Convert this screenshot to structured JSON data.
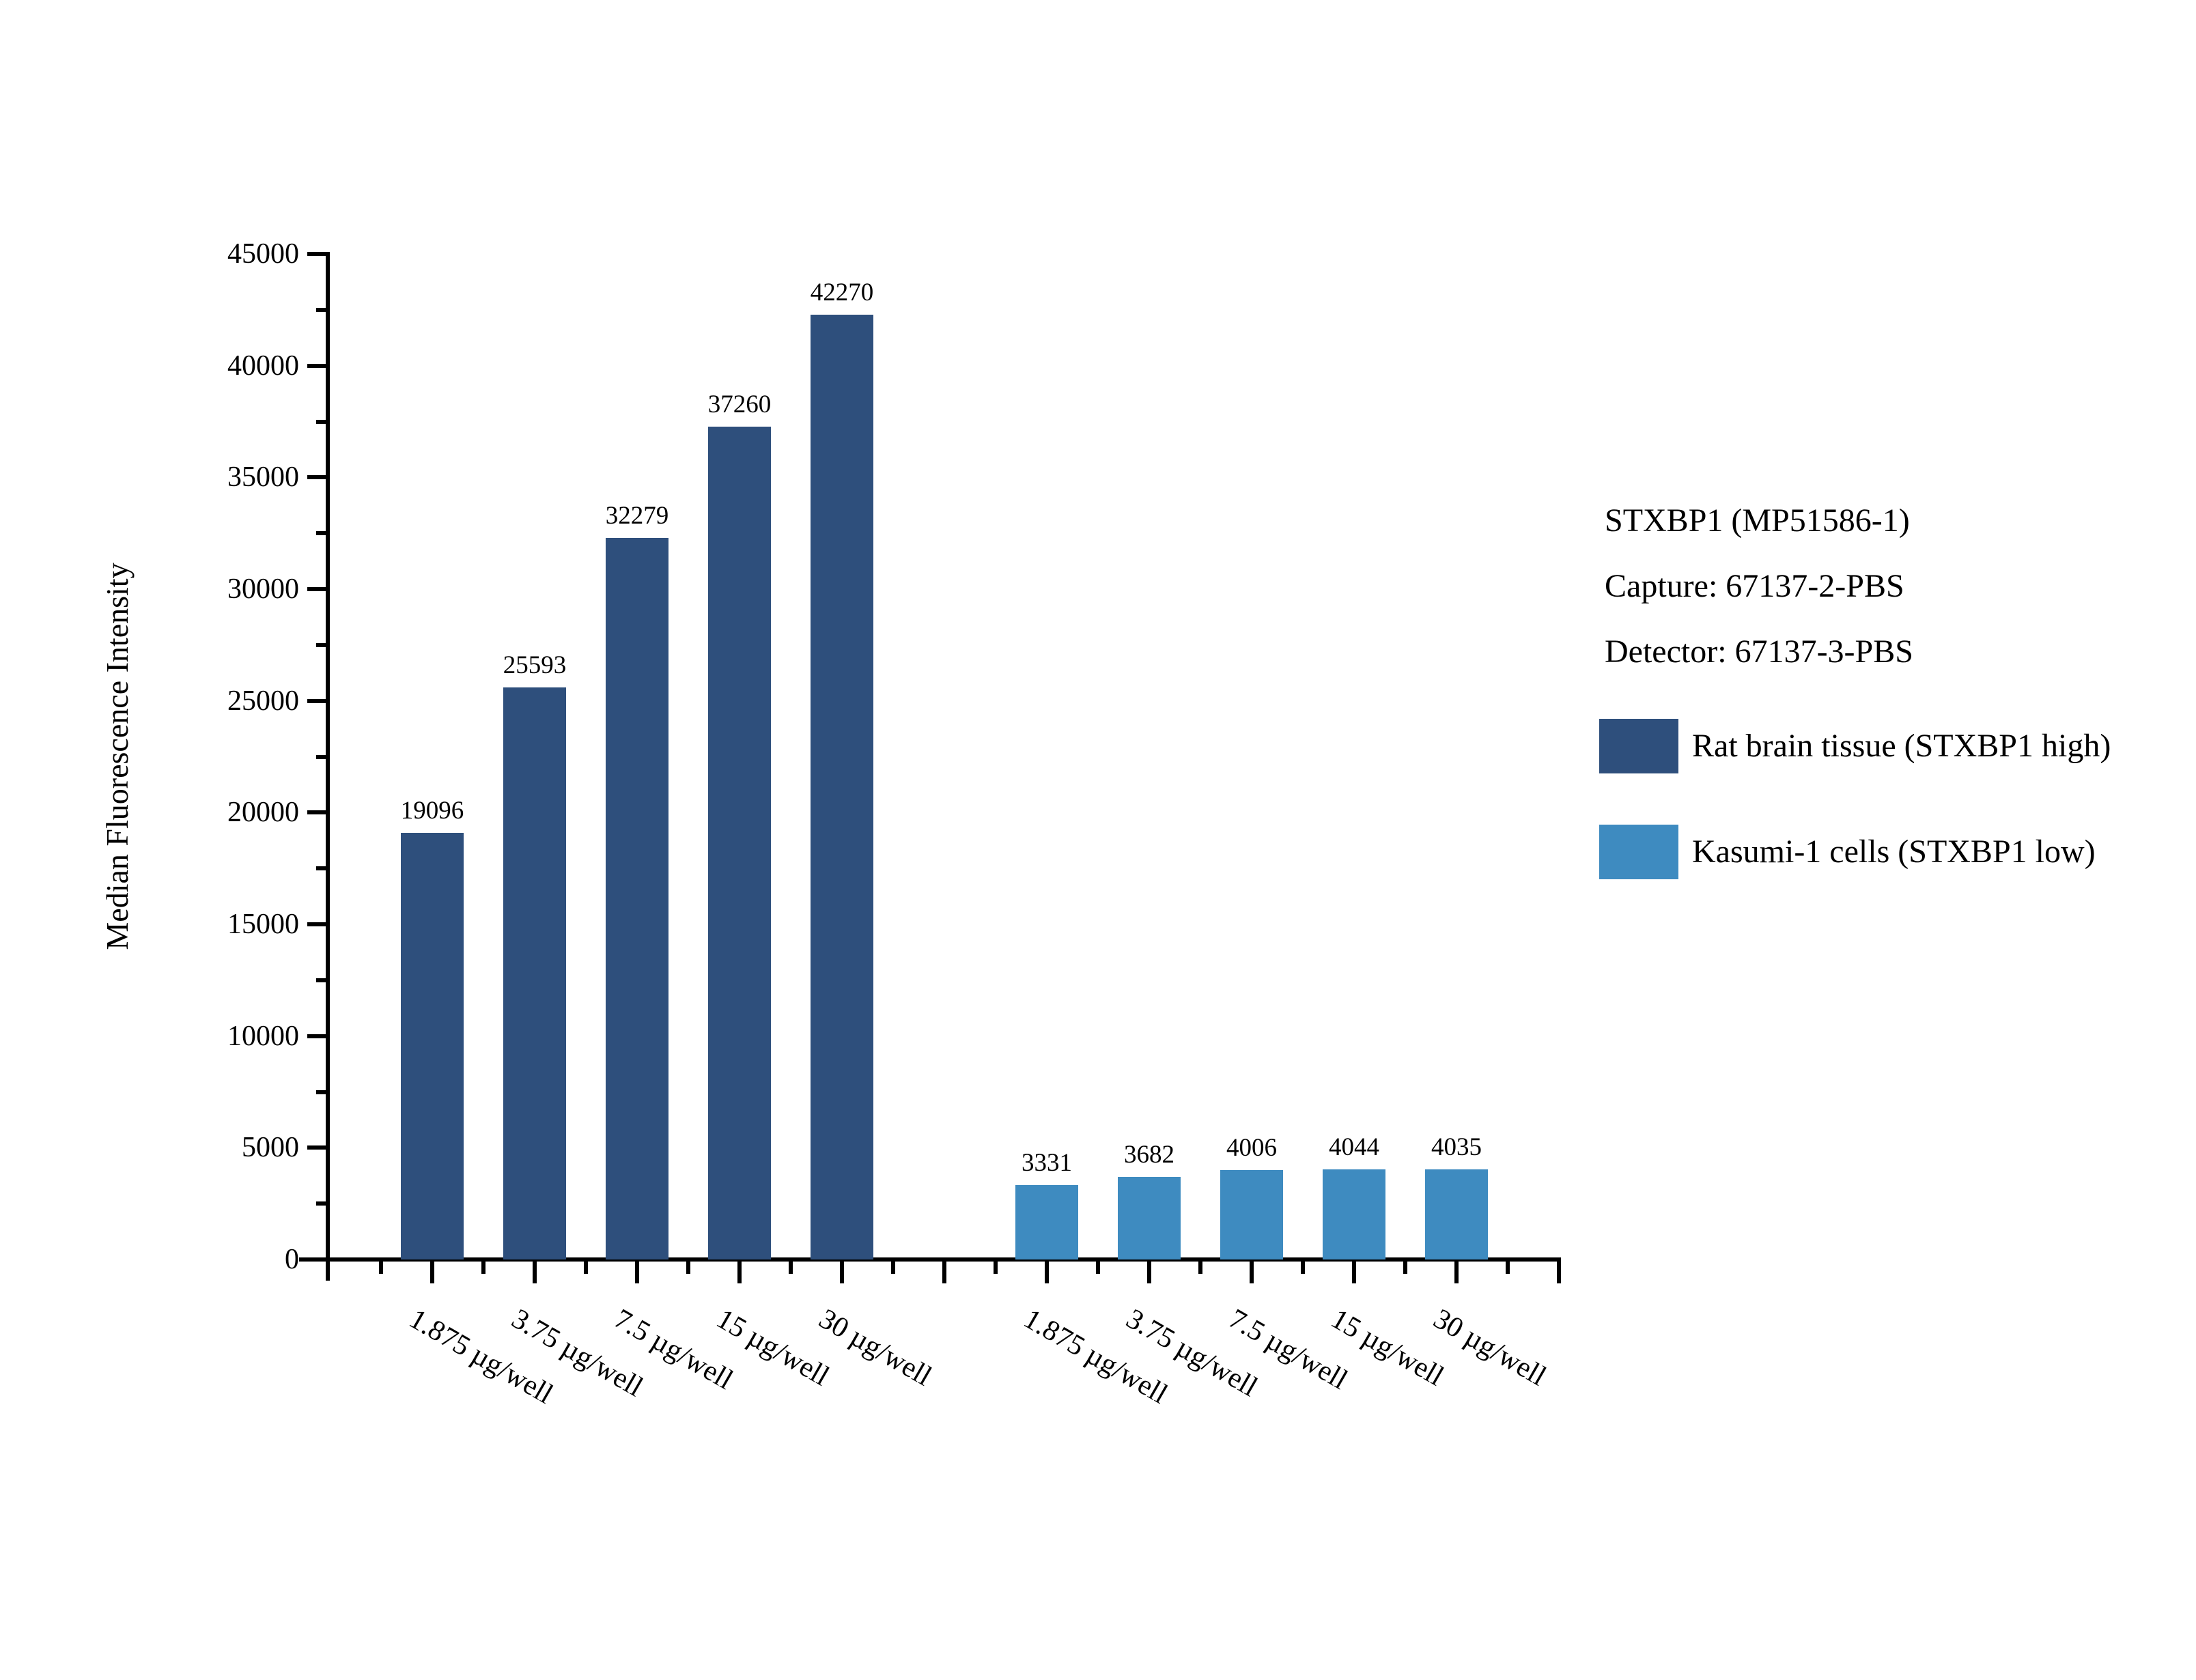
{
  "chart_data": {
    "type": "bar",
    "title": "",
    "xlabel": "",
    "ylabel": "Median Fluorescence Intensity",
    "ylim": [
      0,
      45000
    ],
    "y_major_step": 5000,
    "y_minor_step": 2500,
    "grid": false,
    "legend_position": "right",
    "bar_value_labels_shown": true,
    "categories": [
      "1.875 µg/well",
      "3.75 µg/well",
      "7.5 µg/well",
      "15 µg/well",
      "30 µg/well"
    ],
    "series": [
      {
        "name": "Rat brain tissue (STXBP1 high)",
        "color": "#2e4f7c",
        "values": [
          19096,
          25593,
          32279,
          37260,
          42270
        ]
      },
      {
        "name": "Kasumi-1 cells (STXBP1 low)",
        "color": "#3e8bc0",
        "values": [
          3331,
          3682,
          4006,
          4044,
          4035
        ]
      }
    ]
  },
  "annotation": {
    "line1": "STXBP1 (MP51586-1)",
    "line2": "Capture: 67137-2-PBS",
    "line3": "Detector: 67137-3-PBS"
  },
  "colors": {
    "axis": "#000000",
    "text": "#000000",
    "background": "#ffffff"
  }
}
